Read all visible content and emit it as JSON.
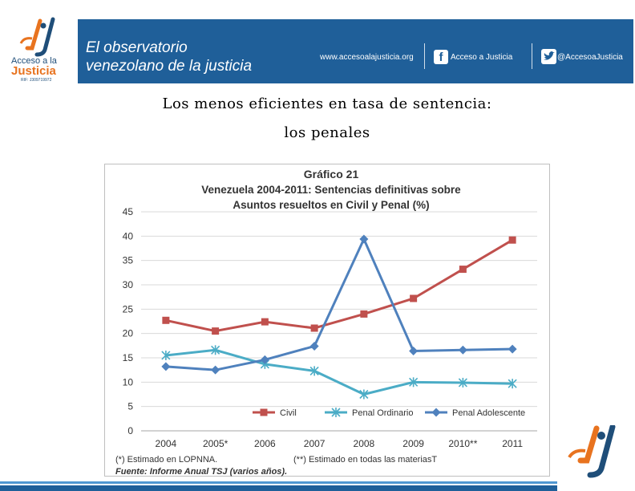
{
  "header": {
    "logo_line1": "Acceso a la",
    "logo_line2": "Justicia",
    "logo_rif": "RIF: J309719972",
    "title_line1": "El observatorio",
    "title_line2": "venezolano de la justicia",
    "website": "www.accesoalajusticia.org",
    "facebook": "Acceso a Justicia",
    "twitter": "@AccesoaJusticia",
    "brand_blue": "#1f5f99",
    "brand_orange": "#e8731f"
  },
  "heading": {
    "line1": "Los menos eficientes en tasa de sentencia:",
    "line2": "los penales"
  },
  "chart_data": {
    "type": "line",
    "title_line1": "Gráfico 21",
    "title_line2": "Venezuela 2004-2011: Sentencias definitivas sobre",
    "title_line3": "Asuntos resueltos en Civil y Penal (%)",
    "categories": [
      "2004",
      "2005*",
      "2006",
      "2007",
      "2008",
      "2009",
      "2010**",
      "2011"
    ],
    "ylim": [
      0,
      45
    ],
    "yticks": [
      0,
      5,
      10,
      15,
      20,
      25,
      30,
      35,
      40,
      45
    ],
    "series": [
      {
        "name": "Civil",
        "color": "#c0504d",
        "marker": "square",
        "values": [
          22.7,
          20.5,
          22.4,
          21.1,
          24.0,
          27.2,
          33.2,
          39.2
        ]
      },
      {
        "name": "Penal Ordinario",
        "color": "#4bacc6",
        "marker": "star",
        "values": [
          15.5,
          16.6,
          13.7,
          12.3,
          7.5,
          10.0,
          9.9,
          9.7
        ]
      },
      {
        "name": "Penal Adolescente",
        "color": "#4f81bd",
        "marker": "diamond",
        "values": [
          13.2,
          12.5,
          14.6,
          17.4,
          39.4,
          16.4,
          16.6,
          16.8
        ]
      }
    ],
    "footnote1": "(*) Estimado en LOPNNA.",
    "footnote2": "(**) Estimado en todas las materiasT",
    "source": "Fuente: Informe Anual TSJ (varios años)."
  }
}
